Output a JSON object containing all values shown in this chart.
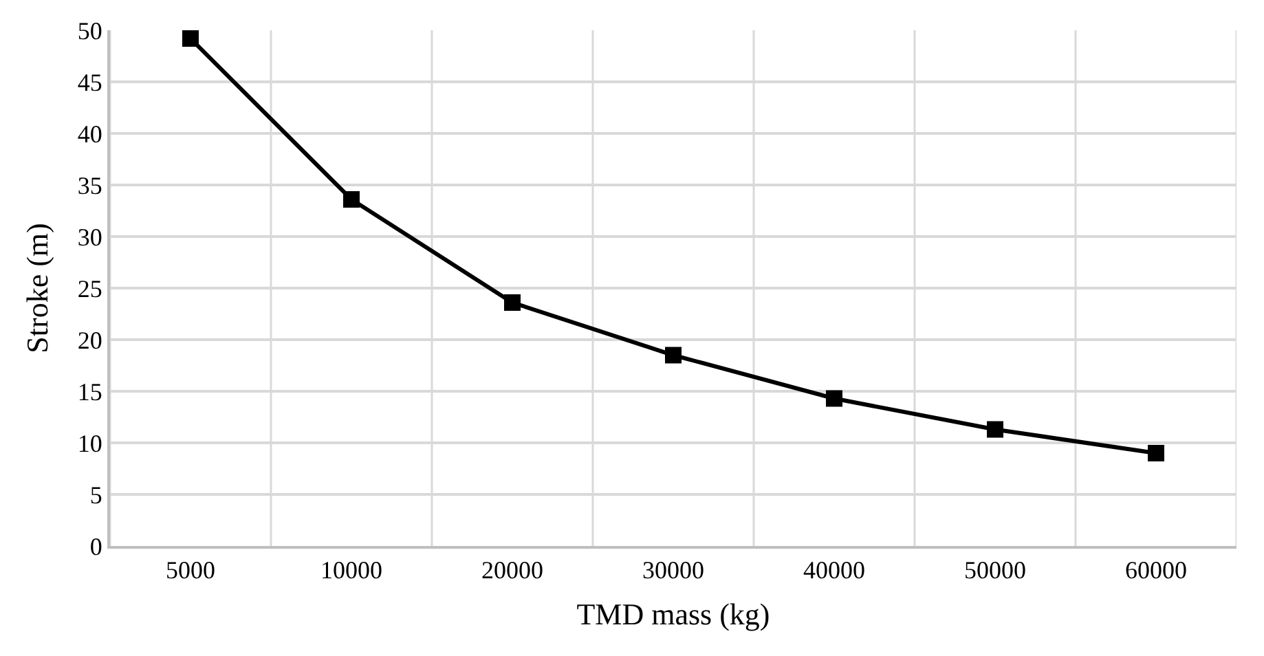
{
  "chart_data": {
    "type": "line",
    "xlabel": "TMD mass (kg)",
    "ylabel": "Stroke (m)",
    "categories": [
      "5000",
      "10000",
      "20000",
      "30000",
      "40000",
      "50000",
      "60000"
    ],
    "series": [
      {
        "color": "#000000",
        "values": [
          49.2,
          33.6,
          23.6,
          18.5,
          14.3,
          11.3,
          9.0
        ]
      }
    ],
    "ylim": [
      0,
      50
    ],
    "yticks": [
      0,
      5,
      10,
      15,
      20,
      25,
      30,
      35,
      40,
      45,
      50
    ],
    "grid": true,
    "marker": "square",
    "line_style": "solid",
    "legend": false
  }
}
